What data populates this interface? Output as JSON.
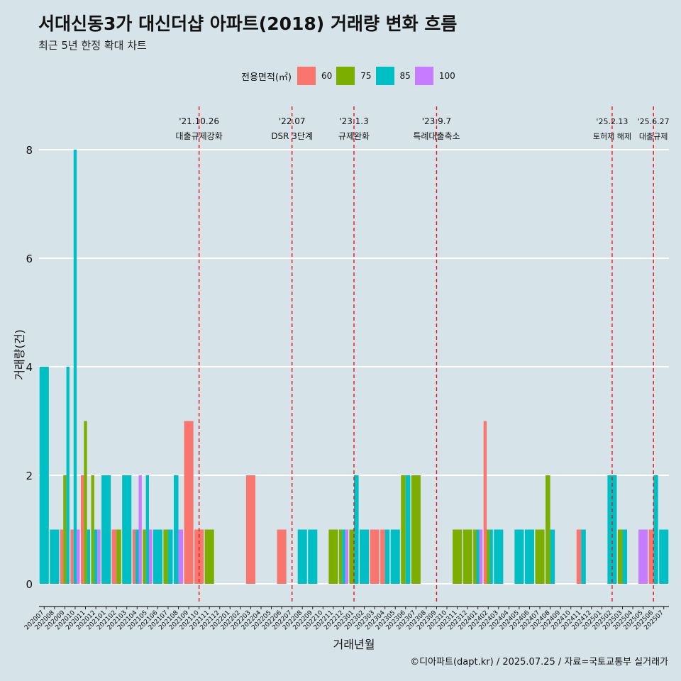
{
  "title": "서대신동3가 대신더샵 아파트(2018) 거래량 변화 흐름",
  "subtitle": "최근 5년 한정 확대 차트",
  "caption": "©디아파트(dapt.kr) / 2025.07.25 / 자료=국토교통부 실거래가",
  "legend": {
    "title": "전용면적(㎡)",
    "items": [
      {
        "label": "60",
        "color": "#F8766D"
      },
      {
        "label": "75",
        "color": "#7CAE00"
      },
      {
        "label": "85",
        "color": "#00BFC4"
      },
      {
        "label": "100",
        "color": "#C77CFF"
      }
    ]
  },
  "chart_data": {
    "type": "bar",
    "xlabel": "거래년월",
    "ylabel": "거래량(건)",
    "ylim": [
      0,
      8
    ],
    "yticks": [
      0,
      2,
      4,
      6,
      8
    ],
    "grid": true,
    "categories": [
      "202007",
      "202008",
      "202009",
      "202010",
      "202011",
      "202012",
      "202101",
      "202102",
      "202103",
      "202104",
      "202105",
      "202106",
      "202107",
      "202108",
      "202109",
      "202110",
      "202111",
      "202112",
      "202201",
      "202202",
      "202203",
      "202204",
      "202205",
      "202206",
      "202207",
      "202208",
      "202209",
      "202210",
      "202211",
      "202212",
      "202301",
      "202302",
      "202303",
      "202304",
      "202305",
      "202306",
      "202307",
      "202308",
      "202309",
      "202310",
      "202311",
      "202312",
      "202401",
      "202402",
      "202403",
      "202404",
      "202405",
      "202406",
      "202407",
      "202408",
      "202409",
      "202410",
      "202411",
      "202412",
      "202501",
      "202502",
      "202503",
      "202504",
      "202505",
      "202506",
      "202507"
    ],
    "bars": [
      {
        "month": "202007",
        "values": [
          {
            "area": "85",
            "count": 4
          }
        ]
      },
      {
        "month": "202008",
        "values": [
          {
            "area": "85",
            "count": 1
          }
        ]
      },
      {
        "month": "202009",
        "values": [
          {
            "area": "60",
            "count": 1
          },
          {
            "area": "75",
            "count": 2
          },
          {
            "area": "85",
            "count": 4
          }
        ]
      },
      {
        "month": "202010",
        "values": [
          {
            "area": "60",
            "count": 1
          },
          {
            "area": "85",
            "count": 8
          },
          {
            "area": "100",
            "count": 1
          }
        ]
      },
      {
        "month": "202011",
        "values": [
          {
            "area": "60",
            "count": 2
          },
          {
            "area": "75",
            "count": 3
          },
          {
            "area": "85",
            "count": 1
          }
        ]
      },
      {
        "month": "202012",
        "values": [
          {
            "area": "75",
            "count": 2
          },
          {
            "area": "85",
            "count": 1
          },
          {
            "area": "100",
            "count": 1
          }
        ]
      },
      {
        "month": "202101",
        "values": [
          {
            "area": "85",
            "count": 2
          }
        ]
      },
      {
        "month": "202102",
        "values": [
          {
            "area": "60",
            "count": 1
          },
          {
            "area": "75",
            "count": 1
          }
        ]
      },
      {
        "month": "202103",
        "values": [
          {
            "area": "85",
            "count": 2
          }
        ]
      },
      {
        "month": "202104",
        "values": [
          {
            "area": "60",
            "count": 1
          },
          {
            "area": "85",
            "count": 1
          },
          {
            "area": "100",
            "count": 2
          }
        ]
      },
      {
        "month": "202105",
        "values": [
          {
            "area": "75",
            "count": 1
          },
          {
            "area": "85",
            "count": 2
          },
          {
            "area": "100",
            "count": 1
          }
        ]
      },
      {
        "month": "202106",
        "values": [
          {
            "area": "85",
            "count": 1
          }
        ]
      },
      {
        "month": "202107",
        "values": [
          {
            "area": "75",
            "count": 1
          },
          {
            "area": "85",
            "count": 1
          }
        ]
      },
      {
        "month": "202108",
        "values": [
          {
            "area": "85",
            "count": 2
          },
          {
            "area": "100",
            "count": 1
          }
        ]
      },
      {
        "month": "202109",
        "values": [
          {
            "area": "60",
            "count": 3
          }
        ]
      },
      {
        "month": "202110",
        "values": [
          {
            "area": "60",
            "count": 1
          }
        ]
      },
      {
        "month": "202111",
        "values": [
          {
            "area": "75",
            "count": 1
          }
        ]
      },
      {
        "month": "202203",
        "values": [
          {
            "area": "60",
            "count": 2
          }
        ]
      },
      {
        "month": "202206",
        "values": [
          {
            "area": "60",
            "count": 1
          }
        ]
      },
      {
        "month": "202208",
        "values": [
          {
            "area": "85",
            "count": 1
          }
        ]
      },
      {
        "month": "202209",
        "values": [
          {
            "area": "85",
            "count": 1
          }
        ]
      },
      {
        "month": "202211",
        "values": [
          {
            "area": "75",
            "count": 1
          }
        ]
      },
      {
        "month": "202212",
        "values": [
          {
            "area": "75",
            "count": 1
          },
          {
            "area": "85",
            "count": 1
          },
          {
            "area": "100",
            "count": 1
          }
        ]
      },
      {
        "month": "202301",
        "values": [
          {
            "area": "75",
            "count": 1
          },
          {
            "area": "85",
            "count": 2
          }
        ]
      },
      {
        "month": "202302",
        "values": [
          {
            "area": "85",
            "count": 1
          }
        ]
      },
      {
        "month": "202303",
        "values": [
          {
            "area": "60",
            "count": 1
          }
        ]
      },
      {
        "month": "202304",
        "values": [
          {
            "area": "60",
            "count": 1
          },
          {
            "area": "85",
            "count": 1
          }
        ]
      },
      {
        "month": "202305",
        "values": [
          {
            "area": "85",
            "count": 1
          }
        ]
      },
      {
        "month": "202306",
        "values": [
          {
            "area": "75",
            "count": 2
          },
          {
            "area": "85",
            "count": 2
          }
        ]
      },
      {
        "month": "202307",
        "values": [
          {
            "area": "75",
            "count": 2
          }
        ]
      },
      {
        "month": "202311",
        "values": [
          {
            "area": "75",
            "count": 1
          }
        ]
      },
      {
        "month": "202312",
        "values": [
          {
            "area": "75",
            "count": 1
          }
        ]
      },
      {
        "month": "202401",
        "values": [
          {
            "area": "75",
            "count": 1
          },
          {
            "area": "85",
            "count": 1
          },
          {
            "area": "100",
            "count": 1
          }
        ]
      },
      {
        "month": "202402",
        "values": [
          {
            "area": "60",
            "count": 3
          },
          {
            "area": "75",
            "count": 1
          },
          {
            "area": "85",
            "count": 1
          }
        ]
      },
      {
        "month": "202403",
        "values": [
          {
            "area": "85",
            "count": 1
          }
        ]
      },
      {
        "month": "202405",
        "values": [
          {
            "area": "85",
            "count": 1
          }
        ]
      },
      {
        "month": "202406",
        "values": [
          {
            "area": "85",
            "count": 1
          }
        ]
      },
      {
        "month": "202407",
        "values": [
          {
            "area": "75",
            "count": 1
          }
        ]
      },
      {
        "month": "202408",
        "values": [
          {
            "area": "75",
            "count": 2
          },
          {
            "area": "85",
            "count": 1
          }
        ]
      },
      {
        "month": "202411",
        "values": [
          {
            "area": "60",
            "count": 1
          },
          {
            "area": "85",
            "count": 1
          }
        ]
      },
      {
        "month": "202502",
        "values": [
          {
            "area": "85",
            "count": 2
          }
        ]
      },
      {
        "month": "202503",
        "values": [
          {
            "area": "75",
            "count": 1
          },
          {
            "area": "85",
            "count": 1
          }
        ]
      },
      {
        "month": "202505",
        "values": [
          {
            "area": "100",
            "count": 1
          }
        ]
      },
      {
        "month": "202506",
        "values": [
          {
            "area": "60",
            "count": 1
          },
          {
            "area": "85",
            "count": 2
          }
        ]
      },
      {
        "month": "202507",
        "values": [
          {
            "area": "85",
            "count": 1
          }
        ]
      }
    ],
    "events": [
      {
        "month": "202110",
        "date": "'21.10.26",
        "label": "대출규제강화"
      },
      {
        "month": "202207",
        "date": "'22.07",
        "label": "DSR 3단계"
      },
      {
        "month": "202301",
        "date": "'23.1.3",
        "label": "규제완화"
      },
      {
        "month": "202309",
        "date": "'23.9.7",
        "label": "특례대출축소"
      },
      {
        "month": "202502",
        "date": "'25.2.13",
        "label": "토허제 해제"
      },
      {
        "month": "202506",
        "date": "'25.6.27",
        "label": "대출규제"
      }
    ]
  }
}
